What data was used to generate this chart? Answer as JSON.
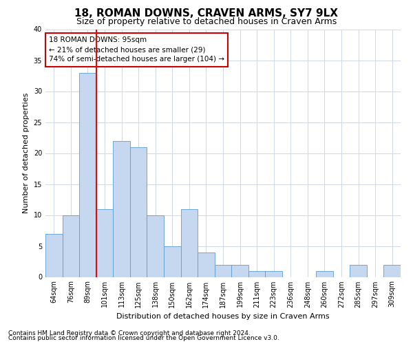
{
  "title": "18, ROMAN DOWNS, CRAVEN ARMS, SY7 9LX",
  "subtitle": "Size of property relative to detached houses in Craven Arms",
  "xlabel": "Distribution of detached houses by size in Craven Arms",
  "ylabel": "Number of detached properties",
  "categories": [
    "64sqm",
    "76sqm",
    "89sqm",
    "101sqm",
    "113sqm",
    "125sqm",
    "138sqm",
    "150sqm",
    "162sqm",
    "174sqm",
    "187sqm",
    "199sqm",
    "211sqm",
    "223sqm",
    "236sqm",
    "248sqm",
    "260sqm",
    "272sqm",
    "285sqm",
    "297sqm",
    "309sqm"
  ],
  "values": [
    7,
    10,
    33,
    11,
    22,
    21,
    10,
    5,
    11,
    4,
    2,
    2,
    1,
    1,
    0,
    0,
    1,
    0,
    2,
    0,
    2
  ],
  "bar_color": "#c5d8f0",
  "bar_edge_color": "#5b9bd5",
  "redline_x": 2.5,
  "ylim": [
    0,
    40
  ],
  "yticks": [
    0,
    5,
    10,
    15,
    20,
    25,
    30,
    35,
    40
  ],
  "annotation_text": "18 ROMAN DOWNS: 95sqm\n← 21% of detached houses are smaller (29)\n74% of semi-detached houses are larger (104) →",
  "annotation_box_facecolor": "#ffffff",
  "annotation_box_edgecolor": "#cc0000",
  "footer_line1": "Contains HM Land Registry data © Crown copyright and database right 2024.",
  "footer_line2": "Contains public sector information licensed under the Open Government Licence v3.0.",
  "background_color": "#ffffff",
  "grid_color": "#d0d8e8",
  "title_fontsize": 11,
  "subtitle_fontsize": 9,
  "axis_label_fontsize": 8,
  "tick_fontsize": 7,
  "annotation_fontsize": 7.5,
  "footer_fontsize": 6.5
}
